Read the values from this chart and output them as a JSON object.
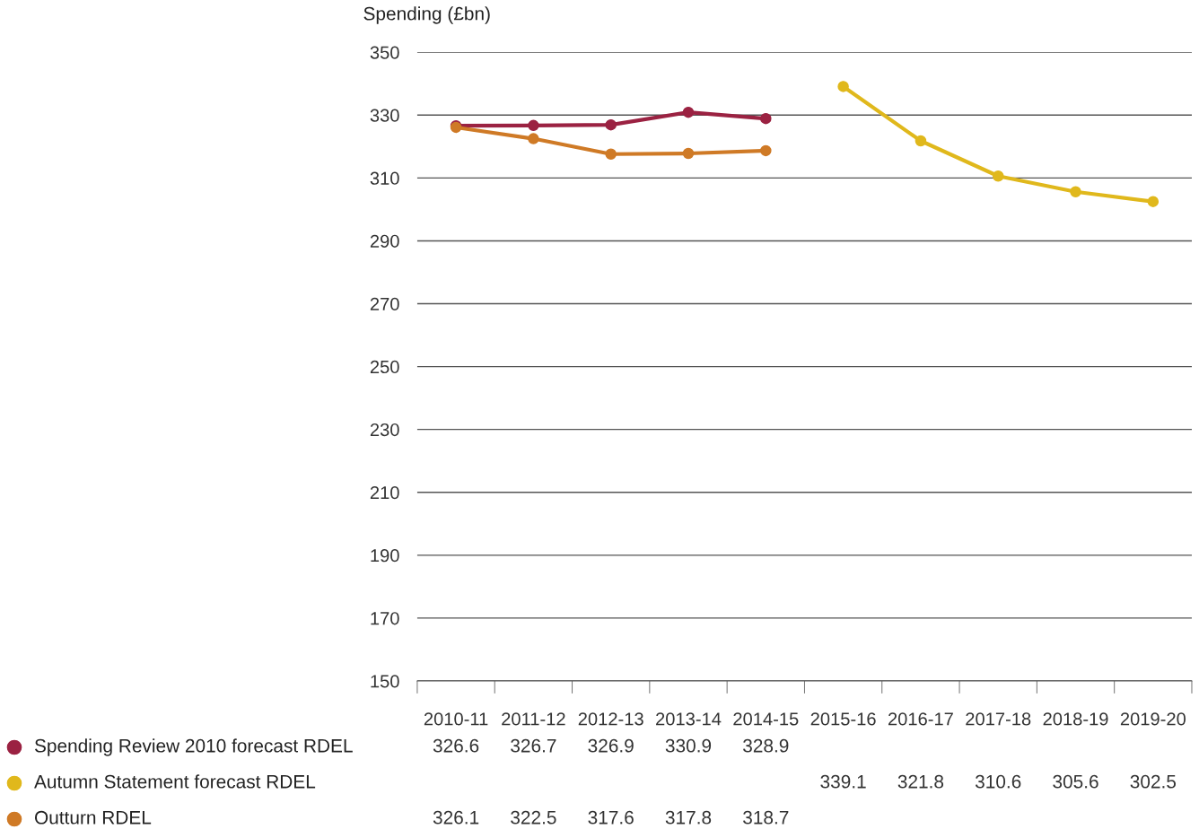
{
  "chart_data": {
    "type": "line",
    "ylabel": "Spending (£bn)",
    "categories": [
      "2010-11",
      "2011-12",
      "2012-13",
      "2013-14",
      "2014-15",
      "2015-16",
      "2016-17",
      "2017-18",
      "2018-19",
      "2019-20"
    ],
    "series": [
      {
        "name": "Spending Review 2010 forecast RDEL",
        "color": "#9b2242",
        "values": [
          326.6,
          326.7,
          326.9,
          330.9,
          328.9,
          null,
          null,
          null,
          null,
          null
        ]
      },
      {
        "name": "Autumn Statement forecast RDEL",
        "color": "#e0b81c",
        "values": [
          null,
          null,
          null,
          null,
          null,
          339.1,
          321.8,
          310.6,
          305.6,
          302.5
        ]
      },
      {
        "name": "Outturn RDEL",
        "color": "#cf7a26",
        "values": [
          326.1,
          322.5,
          317.6,
          317.8,
          318.7,
          null,
          null,
          null,
          null,
          null
        ]
      }
    ],
    "ylim": [
      150,
      350
    ],
    "yticks": [
      150,
      170,
      190,
      210,
      230,
      250,
      270,
      290,
      310,
      330,
      350
    ],
    "grid": "y",
    "legend": "bottom left",
    "data_labels": true,
    "marker": "circle",
    "line_style": "solid"
  }
}
